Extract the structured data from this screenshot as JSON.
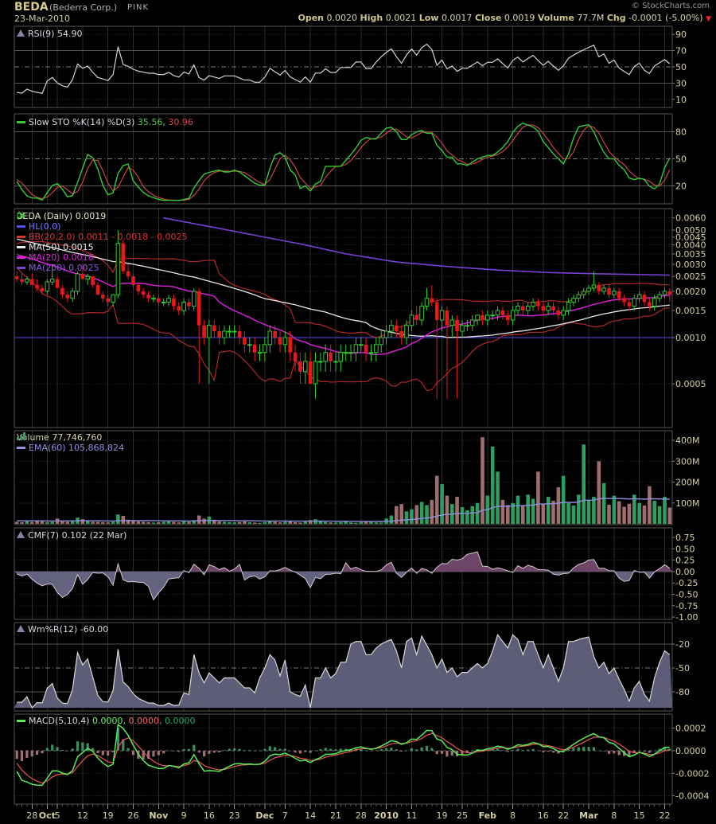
{
  "header": {
    "symbol": "BEDA",
    "company": "(Bederra Corp.)",
    "exchange": "PINK",
    "date": "23-Mar-2010",
    "credit": "© StockCharts.com",
    "quote": {
      "open_label": "Open",
      "open": "0.0020",
      "high_label": "High",
      "high": "0.0021",
      "low_label": "Low",
      "low": "0.0017",
      "close_label": "Close",
      "close": "0.0019",
      "volume_label": "Volume",
      "volume": "77.7M",
      "chg_label": "Chg",
      "chg": "-0.0001 (-5.00%)"
    }
  },
  "legends": {
    "rsi": "RSI(9) 54.90",
    "sto_name": "Slow STO %K(14) %D(3)",
    "sto_k": "35.56,",
    "sto_d": "30.96",
    "main_title": "BEDA (Daily) 0.0019",
    "hl": "HL(0.0)",
    "bb": "BB(20,2.0) 0.0011 - 0.0018 - 0.0025",
    "ma50": "MA(50) 0.0015",
    "ma20": "MA(20) 0.0018",
    "ma200": "MA(200) 0.0025",
    "volume": "Volume 77,746,760",
    "ema": "EMA(60) 105,868,824",
    "cmf": "CMF(7) 0.102 (22 Mar)",
    "wpr": "Wm%R(12) -60.00",
    "macd_name": "MACD(5,10,4)",
    "macd_v1": "0.0000,",
    "macd_v2": "0.0000,",
    "macd_v3": "0.0000"
  },
  "colors": {
    "up": "#2ecc2e",
    "down": "#e81818",
    "bb": "#b22828",
    "ma50": "#e8e8e8",
    "ma20": "#e020e0",
    "ma200": "#7a3fd6",
    "hl": "#5050ee",
    "rsi_line": "#d4d4d4",
    "sto_k": "#33cc33",
    "sto_d": "#cc4444",
    "vol_up": "#2e9e5e",
    "vol_down": "#9e6e6e",
    "ema": "#9090e0",
    "cmf_pos": "#6d4566",
    "cmf_neg": "#63637f",
    "cmf_line": "#d8c8d4",
    "wpr_fill": "#5d5d78",
    "wpr_line": "#d8d8d8",
    "macd_line": "#55ee55",
    "macd_signal": "#ee5555",
    "hist_up": "#3a8f62",
    "hist_down": "#9e7070",
    "axis_text": "#d6d0a2",
    "grid": "#2d2d2d",
    "border": "#565656"
  },
  "chart_data": {
    "type": "candlestick-multi-panel",
    "symbol": "BEDA",
    "period": "Daily",
    "price_scale": 0.0001,
    "volume_scale": 1000000,
    "hl_level": 0.001,
    "candles": [
      [
        25,
        27,
        23,
        24
      ],
      [
        24,
        26,
        22,
        23
      ],
      [
        23,
        25,
        22,
        24
      ],
      [
        24,
        26,
        22,
        22
      ],
      [
        22,
        24,
        20,
        21
      ],
      [
        21,
        22,
        19,
        20
      ],
      [
        20,
        24,
        19,
        23
      ],
      [
        23,
        30,
        22,
        24
      ],
      [
        24,
        25,
        21,
        21
      ],
      [
        21,
        22,
        18,
        19
      ],
      [
        19,
        20,
        17,
        18
      ],
      [
        18,
        21,
        17,
        20
      ],
      [
        20,
        27,
        19,
        26
      ],
      [
        26,
        30,
        24,
        24
      ],
      [
        24,
        26,
        22,
        25
      ],
      [
        25,
        25,
        21,
        22
      ],
      [
        22,
        23,
        19,
        19
      ],
      [
        19,
        20,
        17,
        18
      ],
      [
        18,
        19,
        16,
        17
      ],
      [
        17,
        19,
        16,
        19
      ],
      [
        19,
        50,
        18,
        41
      ],
      [
        41,
        43,
        26,
        27
      ],
      [
        27,
        30,
        24,
        25
      ],
      [
        25,
        26,
        21,
        22
      ],
      [
        22,
        23,
        19,
        20
      ],
      [
        20,
        21,
        18,
        19
      ],
      [
        19,
        20,
        17,
        18
      ],
      [
        18,
        19,
        17,
        18
      ],
      [
        18,
        19,
        16,
        17
      ],
      [
        17,
        18,
        16,
        17
      ],
      [
        17,
        19,
        16,
        18
      ],
      [
        18,
        19,
        15,
        16
      ],
      [
        16,
        17,
        14,
        15
      ],
      [
        15,
        18,
        14,
        17
      ],
      [
        17,
        18,
        15,
        16
      ],
      [
        16,
        21,
        15,
        20
      ],
      [
        20,
        21,
        5,
        12
      ],
      [
        12,
        13,
        9,
        10
      ],
      [
        10,
        13,
        5,
        12
      ],
      [
        12,
        13,
        10,
        11
      ],
      [
        11,
        12,
        9,
        10
      ],
      [
        10,
        12,
        9,
        11
      ],
      [
        11,
        12,
        10,
        11
      ],
      [
        11,
        12,
        10,
        11
      ],
      [
        11,
        12,
        9,
        10
      ],
      [
        10,
        11,
        8,
        9
      ],
      [
        9,
        10,
        8,
        9
      ],
      [
        9,
        10,
        7,
        8
      ],
      [
        8,
        9,
        7,
        8
      ],
      [
        8,
        10,
        7,
        9
      ],
      [
        9,
        12,
        8,
        11
      ],
      [
        11,
        12,
        9,
        10
      ],
      [
        10,
        11,
        8,
        9
      ],
      [
        9,
        11,
        8,
        10
      ],
      [
        10,
        11,
        7,
        8
      ],
      [
        8,
        9,
        6,
        7
      ],
      [
        7,
        8,
        5,
        6
      ],
      [
        6,
        8,
        5,
        7
      ],
      [
        7,
        8,
        5,
        5
      ],
      [
        5,
        8,
        4,
        7
      ],
      [
        7,
        8,
        6,
        7
      ],
      [
        7,
        9,
        6,
        8
      ],
      [
        8,
        9,
        6,
        7
      ],
      [
        7,
        8,
        6,
        7
      ],
      [
        7,
        9,
        6,
        8
      ],
      [
        8,
        9,
        7,
        8
      ],
      [
        8,
        9,
        7,
        8
      ],
      [
        8,
        10,
        7,
        9
      ],
      [
        9,
        10,
        8,
        9
      ],
      [
        9,
        10,
        7,
        8
      ],
      [
        8,
        9,
        7,
        8
      ],
      [
        8,
        10,
        7,
        9
      ],
      [
        9,
        11,
        8,
        10
      ],
      [
        10,
        12,
        9,
        11
      ],
      [
        11,
        13,
        10,
        12
      ],
      [
        12,
        13,
        10,
        11
      ],
      [
        11,
        12,
        9,
        10
      ],
      [
        10,
        13,
        9,
        12
      ],
      [
        12,
        15,
        11,
        14
      ],
      [
        14,
        16,
        12,
        13
      ],
      [
        13,
        17,
        12,
        16
      ],
      [
        16,
        21,
        15,
        18
      ],
      [
        18,
        22,
        16,
        17
      ],
      [
        17,
        18,
        4,
        13
      ],
      [
        13,
        16,
        11,
        15
      ],
      [
        15,
        16,
        4,
        12
      ],
      [
        12,
        14,
        10,
        13
      ],
      [
        13,
        14,
        4,
        11
      ],
      [
        11,
        13,
        10,
        12
      ],
      [
        12,
        13,
        11,
        12
      ],
      [
        12,
        14,
        11,
        13
      ],
      [
        13,
        14,
        12,
        14
      ],
      [
        14,
        15,
        12,
        13
      ],
      [
        13,
        15,
        12,
        14
      ],
      [
        14,
        15,
        13,
        14
      ],
      [
        14,
        16,
        13,
        15
      ],
      [
        15,
        16,
        13,
        14
      ],
      [
        14,
        15,
        12,
        13
      ],
      [
        13,
        16,
        12,
        15
      ],
      [
        15,
        17,
        14,
        16
      ],
      [
        16,
        17,
        14,
        15
      ],
      [
        15,
        17,
        14,
        16
      ],
      [
        16,
        18,
        15,
        17
      ],
      [
        17,
        18,
        15,
        16
      ],
      [
        16,
        17,
        14,
        15
      ],
      [
        15,
        17,
        14,
        16
      ],
      [
        16,
        17,
        14,
        15
      ],
      [
        15,
        16,
        13,
        14
      ],
      [
        14,
        16,
        13,
        15
      ],
      [
        15,
        18,
        14,
        17
      ],
      [
        17,
        19,
        16,
        18
      ],
      [
        18,
        20,
        17,
        19
      ],
      [
        19,
        21,
        18,
        20
      ],
      [
        20,
        22,
        19,
        21
      ],
      [
        21,
        27,
        20,
        22
      ],
      [
        22,
        23,
        19,
        20
      ],
      [
        20,
        22,
        19,
        21
      ],
      [
        21,
        22,
        18,
        19
      ],
      [
        19,
        21,
        18,
        20
      ],
      [
        20,
        21,
        17,
        18
      ],
      [
        18,
        19,
        16,
        17
      ],
      [
        17,
        18,
        15,
        16
      ],
      [
        16,
        19,
        15,
        18
      ],
      [
        18,
        20,
        17,
        19
      ],
      [
        19,
        20,
        16,
        17
      ],
      [
        17,
        18,
        15,
        16
      ],
      [
        16,
        19,
        15,
        18
      ],
      [
        18,
        20,
        17,
        19
      ],
      [
        19,
        21,
        18,
        20
      ],
      [
        20,
        21,
        17,
        19
      ]
    ],
    "volumes": [
      10,
      8,
      12,
      9,
      14,
      11,
      8,
      10,
      25,
      15,
      10,
      12,
      30,
      22,
      14,
      10,
      9,
      8,
      7,
      10,
      45,
      38,
      20,
      15,
      12,
      10,
      8,
      6,
      8,
      10,
      12,
      9,
      7,
      14,
      10,
      18,
      40,
      25,
      35,
      20,
      12,
      10,
      8,
      7,
      9,
      12,
      8,
      6,
      5,
      8,
      15,
      10,
      7,
      9,
      11,
      8,
      6,
      10,
      18,
      22,
      12,
      9,
      7,
      6,
      8,
      10,
      7,
      5,
      8,
      12,
      9,
      7,
      6,
      25,
      40,
      85,
      95,
      60,
      70,
      90,
      105,
      90,
      115,
      230,
      190,
      135,
      95,
      130,
      80,
      65,
      85,
      100,
      415,
      135,
      370,
      250,
      115,
      90,
      100,
      135,
      88,
      140,
      120,
      250,
      95,
      130,
      110,
      175,
      230,
      100,
      88,
      140,
      380,
      115,
      130,
      300,
      195,
      92,
      135,
      108,
      82,
      96,
      140,
      100,
      88,
      180,
      110,
      85,
      130,
      78
    ],
    "pre_close": [
      62,
      63,
      60,
      61,
      58,
      59,
      57,
      58,
      55,
      56,
      54,
      52,
      53,
      51,
      52,
      49,
      50,
      48,
      46,
      47,
      45,
      46,
      44,
      42,
      43,
      41,
      42,
      40,
      41,
      39,
      40,
      38,
      39,
      37,
      38,
      36,
      37,
      36,
      35,
      36,
      34,
      35,
      34,
      33,
      34,
      33,
      34,
      33,
      34,
      34
    ],
    "ma200_points": [
      [
        30,
        60
      ],
      [
        40,
        52
      ],
      [
        50,
        45
      ],
      [
        58,
        40
      ],
      [
        66,
        35
      ],
      [
        76,
        31
      ],
      [
        86,
        29
      ],
      [
        96,
        27.5
      ],
      [
        106,
        26.5
      ],
      [
        116,
        26
      ],
      [
        130,
        25.5
      ]
    ],
    "x_ticks": [
      {
        "label": "28",
        "bar": 4,
        "bold": false
      },
      {
        "label": "Oct",
        "bar": 7,
        "bold": true
      },
      {
        "label": "5",
        "bar": 9,
        "bold": false
      },
      {
        "label": "12",
        "bar": 14,
        "bold": false
      },
      {
        "label": "19",
        "bar": 19,
        "bold": false
      },
      {
        "label": "26",
        "bar": 24,
        "bold": false
      },
      {
        "label": "Nov",
        "bar": 29,
        "bold": true
      },
      {
        "label": "9",
        "bar": 34,
        "bold": false
      },
      {
        "label": "16",
        "bar": 39,
        "bold": false
      },
      {
        "label": "23",
        "bar": 44,
        "bold": false
      },
      {
        "label": "Dec",
        "bar": 50,
        "bold": true
      },
      {
        "label": "7",
        "bar": 54,
        "bold": false
      },
      {
        "label": "14",
        "bar": 59,
        "bold": false
      },
      {
        "label": "21",
        "bar": 64,
        "bold": false
      },
      {
        "label": "28",
        "bar": 69,
        "bold": false
      },
      {
        "label": "2010",
        "bar": 74,
        "bold": true
      },
      {
        "label": "11",
        "bar": 79,
        "bold": false
      },
      {
        "label": "19",
        "bar": 85,
        "bold": false
      },
      {
        "label": "25",
        "bar": 89,
        "bold": false
      },
      {
        "label": "Feb",
        "bar": 94,
        "bold": true
      },
      {
        "label": "8",
        "bar": 99,
        "bold": false
      },
      {
        "label": "16",
        "bar": 105,
        "bold": false
      },
      {
        "label": "22",
        "bar": 109,
        "bold": false
      },
      {
        "label": "Mar",
        "bar": 114,
        "bold": true
      },
      {
        "label": "8",
        "bar": 119,
        "bold": false
      },
      {
        "label": "15",
        "bar": 124,
        "bold": false
      },
      {
        "label": "22",
        "bar": 129,
        "bold": false
      }
    ],
    "axes": {
      "rsi": [
        90,
        70,
        50,
        30,
        10
      ],
      "sto": [
        80,
        50,
        20
      ],
      "price": [
        0.006,
        0.005,
        0.0045,
        0.004,
        0.0035,
        0.003,
        0.0025,
        0.002,
        0.0015,
        0.001,
        0.0005
      ],
      "volume": [
        400,
        300,
        200,
        100
      ],
      "cmf": [
        0.75,
        0.5,
        0.25,
        0.0,
        -0.25,
        -0.5,
        -0.75,
        -1.0
      ],
      "wpr": [
        -20,
        -50,
        -80
      ],
      "macd": [
        0.0002,
        0.0,
        -0.0002,
        -0.0004
      ]
    },
    "indicator_settings": {
      "rsi_period": 9,
      "sto_k": 14,
      "sto_d": 3,
      "bb": [
        20,
        2.0
      ],
      "ma": [
        50,
        20,
        200
      ],
      "vol_ema": 60,
      "cmf": 7,
      "wpr": 12,
      "macd": [
        5,
        10,
        4
      ]
    }
  }
}
